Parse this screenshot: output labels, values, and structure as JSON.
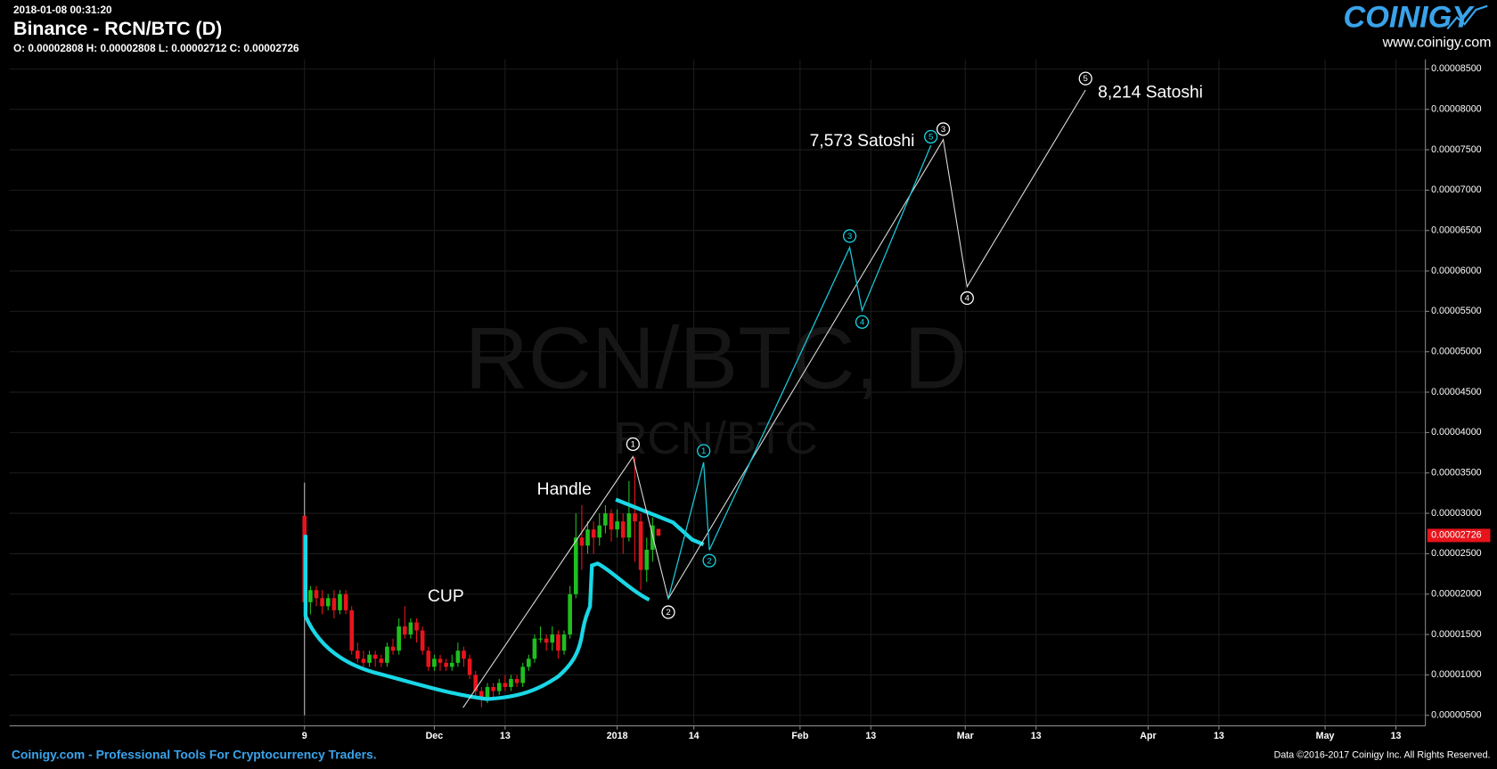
{
  "chart_data": {
    "type": "candlestick",
    "timestamp": "2018-01-08 00:31:20",
    "title": "Binance - RCN/BTC (D)",
    "ohlc_text": "O: 0.00002808 H: 0.00002808 L: 0.00002712 C: 0.00002726",
    "watermark": "RCN/BTC, D",
    "watermark_sub": "RCN/BTC",
    "logo": "COINIGY",
    "logo_url": "www.coinigy.com",
    "footer_left": "Coinigy.com - Professional Tools For Cryptocurrency Traders.",
    "footer_right": "Data ©2016-2017 Coinigy Inc. All Rights Reserved.",
    "up_color": "#1fbf1f",
    "down_color": "#e8141c",
    "grid": true,
    "x": [
      "2017-11-09",
      "2017-11-10",
      "2017-11-11",
      "2017-11-12",
      "2017-11-13",
      "2017-11-14",
      "2017-11-15",
      "2017-11-16",
      "2017-11-17",
      "2017-11-18",
      "2017-11-19",
      "2017-11-20",
      "2017-11-21",
      "2017-11-22",
      "2017-11-23",
      "2017-11-24",
      "2017-11-25",
      "2017-11-26",
      "2017-11-27",
      "2017-11-28",
      "2017-11-29",
      "2017-11-30",
      "2017-12-01",
      "2017-12-02",
      "2017-12-03",
      "2017-12-04",
      "2017-12-05",
      "2017-12-06",
      "2017-12-07",
      "2017-12-08",
      "2017-12-09",
      "2017-12-10",
      "2017-12-11",
      "2017-12-12",
      "2017-12-13",
      "2017-12-14",
      "2017-12-15",
      "2017-12-16",
      "2017-12-17",
      "2017-12-18",
      "2017-12-19",
      "2017-12-20",
      "2017-12-21",
      "2017-12-22",
      "2017-12-23",
      "2017-12-24",
      "2017-12-25",
      "2017-12-26",
      "2017-12-27",
      "2017-12-28",
      "2017-12-29",
      "2017-12-30",
      "2017-12-31",
      "2018-01-01",
      "2018-01-02",
      "2018-01-03",
      "2018-01-04",
      "2018-01-05",
      "2018-01-06",
      "2018-01-07",
      "2018-01-08"
    ],
    "open": [
      2.97e-05,
      1.9e-05,
      2.05e-05,
      1.95e-05,
      1.85e-05,
      1.95e-05,
      1.8e-05,
      2e-05,
      1.8e-05,
      1.3e-05,
      1.2e-05,
      1.15e-05,
      1.25e-05,
      1.2e-05,
      1.15e-05,
      1.35e-05,
      1.3e-05,
      1.6e-05,
      1.5e-05,
      1.65e-05,
      1.55e-05,
      1.3e-05,
      1.1e-05,
      1.2e-05,
      1.15e-05,
      1.1e-05,
      1.15e-05,
      1.3e-05,
      1.2e-05,
      1e-05,
      8e-06,
      7e-06,
      8.5e-06,
      8e-06,
      9e-06,
      8.5e-06,
      9.5e-06,
      9e-06,
      1.1e-05,
      1.2e-05,
      1.45e-05,
      1.45e-05,
      1.4e-05,
      1.5e-05,
      1.3e-05,
      1.5e-05,
      2e-05,
      2.7e-05,
      2.6e-05,
      2.8e-05,
      2.7e-05,
      2.85e-05,
      3e-05,
      2.8e-05,
      2.9e-05,
      2.7e-05,
      3e-05,
      2.9e-05,
      2.3e-05,
      2.55e-05,
      2.808e-05
    ],
    "high": [
      3.38e-05,
      2.1e-05,
      2.1e-05,
      2.05e-05,
      2e-05,
      2.05e-05,
      2.05e-05,
      2.05e-05,
      1.85e-05,
      1.4e-05,
      1.3e-05,
      1.3e-05,
      1.3e-05,
      1.25e-05,
      1.4e-05,
      1.45e-05,
      1.7e-05,
      1.85e-05,
      1.7e-05,
      1.7e-05,
      1.6e-05,
      1.35e-05,
      1.25e-05,
      1.25e-05,
      1.2e-05,
      1.25e-05,
      1.4e-05,
      1.35e-05,
      1.25e-05,
      1.05e-05,
      8.5e-06,
      9e-06,
      9e-06,
      9.5e-06,
      1e-05,
      1e-05,
      1e-05,
      1.15e-05,
      1.25e-05,
      1.5e-05,
      1.6e-05,
      1.5e-05,
      1.6e-05,
      1.55e-05,
      1.55e-05,
      2.1e-05,
      3e-05,
      3.1e-05,
      2.9e-05,
      2.9e-05,
      3e-05,
      3.1e-05,
      3.05e-05,
      3.05e-05,
      3e-05,
      3.4e-05,
      3.7e-05,
      3e-05,
      2.7e-05,
      2.95e-05,
      2.808e-05
    ],
    "low": [
      5e-06,
      1.75e-05,
      1.85e-05,
      1.75e-05,
      1.8e-05,
      1.7e-05,
      1.75e-05,
      1.75e-05,
      1.25e-05,
      1.15e-05,
      1.1e-05,
      1.1e-05,
      1.1e-05,
      1.1e-05,
      1.1e-05,
      1.25e-05,
      1.25e-05,
      1.45e-05,
      1.45e-05,
      1.4e-05,
      1.25e-05,
      1.05e-05,
      1.05e-05,
      1.05e-05,
      1.05e-05,
      1.05e-05,
      1.1e-05,
      1.1e-05,
      9.5e-06,
      7e-06,
      6e-06,
      6.5e-06,
      7e-06,
      7.5e-06,
      8e-06,
      8e-06,
      8.5e-06,
      8.5e-06,
      1.05e-05,
      1.15e-05,
      1.4e-05,
      1.3e-05,
      1.3e-05,
      1.2e-05,
      1.25e-05,
      1.45e-05,
      1.95e-05,
      2.3e-05,
      2.5e-05,
      2.5e-05,
      2.6e-05,
      2.75e-05,
      2.65e-05,
      2.7e-05,
      2.5e-05,
      2.65e-05,
      2.4e-05,
      2.05e-05,
      2.15e-05,
      2.4e-05,
      2.712e-05
    ],
    "close": [
      1.9e-05,
      2.05e-05,
      1.95e-05,
      1.85e-05,
      1.95e-05,
      1.8e-05,
      2e-05,
      1.8e-05,
      1.3e-05,
      1.2e-05,
      1.15e-05,
      1.25e-05,
      1.2e-05,
      1.15e-05,
      1.35e-05,
      1.3e-05,
      1.6e-05,
      1.5e-05,
      1.65e-05,
      1.55e-05,
      1.3e-05,
      1.1e-05,
      1.2e-05,
      1.15e-05,
      1.1e-05,
      1.15e-05,
      1.3e-05,
      1.2e-05,
      1e-05,
      8e-06,
      7e-06,
      8.5e-06,
      8e-06,
      9e-06,
      8.5e-06,
      9.5e-06,
      9e-06,
      1.1e-05,
      1.2e-05,
      1.45e-05,
      1.45e-05,
      1.4e-05,
      1.5e-05,
      1.3e-05,
      1.5e-05,
      2e-05,
      2.7e-05,
      2.6e-05,
      2.8e-05,
      2.7e-05,
      2.85e-05,
      3e-05,
      2.8e-05,
      2.9e-05,
      2.7e-05,
      3e-05,
      2.9e-05,
      2.3e-05,
      2.55e-05,
      2.85e-05,
      2.726e-05
    ],
    "last_price": {
      "value": 2.726e-05,
      "label": "0.00002726"
    },
    "xlim": [
      "2017-09-20",
      "2018-05-18"
    ],
    "xticks": [
      {
        "value": "2017-11-09",
        "label": "9"
      },
      {
        "value": "2017-12-01",
        "label": "Dec"
      },
      {
        "value": "2017-12-13",
        "label": "13"
      },
      {
        "value": "2018-01-01",
        "label": "2018"
      },
      {
        "value": "2018-01-14",
        "label": "14"
      },
      {
        "value": "2018-02-01",
        "label": "Feb"
      },
      {
        "value": "2018-02-13",
        "label": "13"
      },
      {
        "value": "2018-03-01",
        "label": "Mar"
      },
      {
        "value": "2018-03-13",
        "label": "13"
      },
      {
        "value": "2018-04-01",
        "label": "Apr"
      },
      {
        "value": "2018-04-13",
        "label": "13"
      },
      {
        "value": "2018-05-01",
        "label": "May"
      },
      {
        "value": "2018-05-13",
        "label": "13"
      }
    ],
    "ylim": [
      3.7e-06,
      8.618e-05
    ],
    "yticks": [
      {
        "value": 5e-06,
        "label": "0.00000500"
      },
      {
        "value": 1e-05,
        "label": "0.00001000"
      },
      {
        "value": 1.5e-05,
        "label": "0.00001500"
      },
      {
        "value": 2e-05,
        "label": "0.00002000"
      },
      {
        "value": 2.5e-05,
        "label": "0.00002500"
      },
      {
        "value": 3e-05,
        "label": "0.00003000"
      },
      {
        "value": 3.5e-05,
        "label": "0.00003500"
      },
      {
        "value": 4e-05,
        "label": "0.00004000"
      },
      {
        "value": 4.5e-05,
        "label": "0.00004500"
      },
      {
        "value": 5e-05,
        "label": "0.00005000"
      },
      {
        "value": 5.5e-05,
        "label": "0.00005500"
      },
      {
        "value": 6e-05,
        "label": "0.00006000"
      },
      {
        "value": 6.5e-05,
        "label": "0.00006500"
      },
      {
        "value": 7e-05,
        "label": "0.00007000"
      },
      {
        "value": 7.5e-05,
        "label": "0.00007500"
      },
      {
        "value": 8e-05,
        "label": "0.00008000"
      },
      {
        "value": 8.5e-05,
        "label": "0.00008500"
      }
    ],
    "annotations": {
      "cup": "CUP",
      "handle": "Handle",
      "target_1": "7,573 Satoshi",
      "target_2": "8,214 Satoshi",
      "wave_white": [
        "1",
        "2",
        "3",
        "4",
        "5"
      ],
      "wave_cyan": [
        "1",
        "2",
        "3",
        "4",
        "5"
      ]
    }
  }
}
